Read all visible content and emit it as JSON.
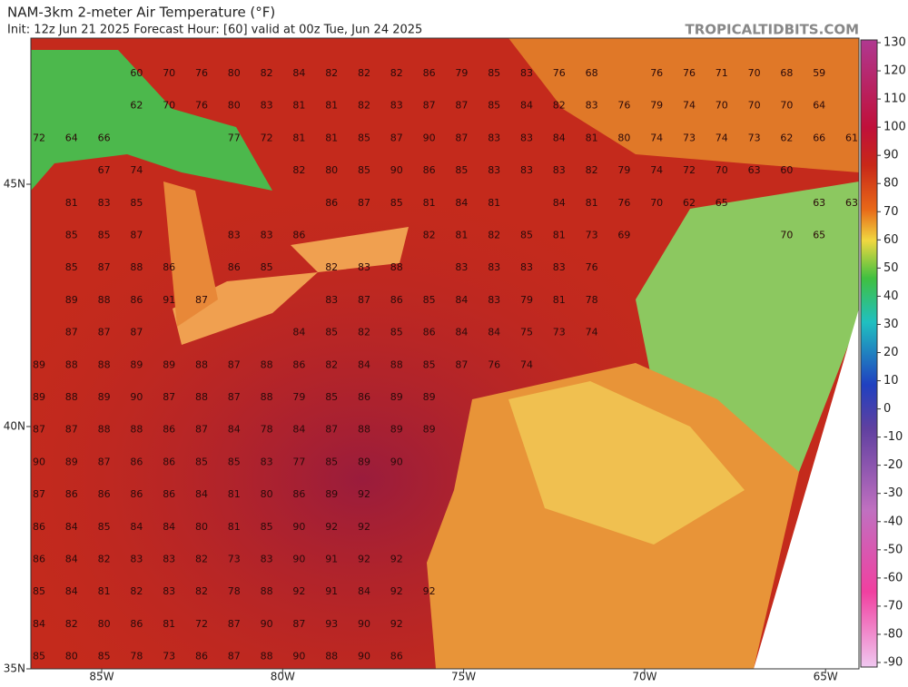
{
  "header": {
    "title": "NAM-3km 2-meter Air Temperature (°F)",
    "subtitle": "Init: 12z Jun 21 2025   Forecast Hour: [60]   valid at 00z Tue, Jun 24 2025",
    "site": "TROPICALTIDBITS.COM"
  },
  "colorbar": {
    "labels": [
      130,
      120,
      110,
      100,
      90,
      80,
      70,
      60,
      50,
      40,
      30,
      20,
      10,
      0,
      -10,
      -20,
      -30,
      -40,
      -50,
      -60,
      -70,
      -80,
      -90
    ]
  },
  "axes": {
    "lat": [
      "45N",
      "40N",
      "35N"
    ],
    "lon": [
      "85W",
      "80W",
      "75W",
      "70W",
      "65W"
    ]
  },
  "temperatures": [
    [
      null,
      null,
      null,
      60,
      70,
      76,
      80,
      82,
      84,
      82,
      82,
      82,
      86,
      79,
      85,
      83,
      76,
      68,
      null,
      76,
      76,
      71,
      70,
      68,
      59
    ],
    [
      null,
      null,
      null,
      62,
      70,
      76,
      80,
      83,
      81,
      81,
      82,
      83,
      87,
      87,
      85,
      84,
      82,
      83,
      76,
      79,
      74,
      70,
      70,
      70,
      64
    ],
    [
      72,
      64,
      66,
      null,
      null,
      null,
      77,
      72,
      81,
      81,
      85,
      87,
      90,
      87,
      83,
      83,
      84,
      81,
      80,
      74,
      73,
      74,
      73,
      62,
      66,
      61
    ],
    [
      null,
      null,
      67,
      74,
      null,
      null,
      null,
      null,
      82,
      80,
      85,
      90,
      86,
      85,
      83,
      83,
      83,
      82,
      79,
      74,
      72,
      70,
      63,
      60
    ],
    [
      null,
      81,
      83,
      85,
      null,
      null,
      null,
      null,
      null,
      86,
      87,
      85,
      81,
      84,
      81,
      null,
      84,
      81,
      76,
      70,
      62,
      65,
      null,
      null,
      63,
      63
    ],
    [
      null,
      85,
      85,
      87,
      null,
      null,
      83,
      83,
      86,
      null,
      null,
      null,
      82,
      81,
      82,
      85,
      81,
      73,
      69,
      null,
      null,
      null,
      null,
      70,
      65
    ],
    [
      null,
      85,
      87,
      88,
      86,
      null,
      86,
      85,
      null,
      82,
      83,
      88,
      null,
      83,
      83,
      83,
      83,
      76
    ],
    [
      null,
      89,
      88,
      86,
      91,
      87,
      null,
      null,
      null,
      83,
      87,
      86,
      85,
      84,
      83,
      79,
      81,
      78
    ],
    [
      null,
      87,
      87,
      87,
      null,
      null,
      null,
      null,
      84,
      85,
      82,
      85,
      86,
      84,
      84,
      75,
      73,
      74
    ],
    [
      89,
      88,
      88,
      89,
      89,
      88,
      87,
      88,
      86,
      82,
      84,
      88,
      85,
      87,
      76,
      74
    ],
    [
      89,
      88,
      89,
      90,
      87,
      88,
      87,
      88,
      79,
      85,
      86,
      89,
      89
    ],
    [
      87,
      87,
      88,
      88,
      86,
      87,
      84,
      78,
      84,
      87,
      88,
      89,
      89
    ],
    [
      90,
      89,
      87,
      86,
      86,
      85,
      85,
      83,
      77,
      85,
      89,
      90
    ],
    [
      87,
      86,
      86,
      86,
      86,
      84,
      81,
      80,
      86,
      89,
      92
    ],
    [
      86,
      84,
      85,
      84,
      84,
      80,
      81,
      85,
      90,
      92,
      92
    ],
    [
      86,
      84,
      82,
      83,
      83,
      82,
      73,
      83,
      90,
      91,
      92,
      92
    ],
    [
      85,
      84,
      81,
      82,
      83,
      82,
      78,
      88,
      92,
      91,
      84,
      92,
      92
    ],
    [
      84,
      82,
      80,
      86,
      81,
      72,
      87,
      90,
      87,
      93,
      90,
      92
    ],
    [
      85,
      80,
      85,
      78,
      73,
      86,
      87,
      88,
      90,
      88,
      90,
      86
    ]
  ]
}
